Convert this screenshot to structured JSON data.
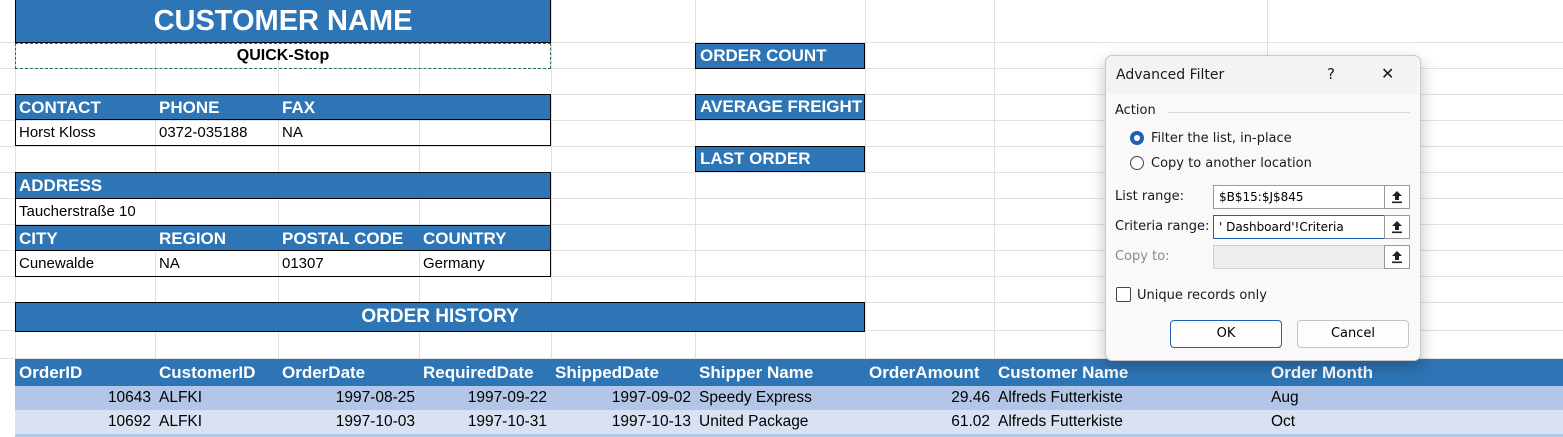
{
  "customer_card": {
    "title": "CUSTOMER NAME",
    "name": "QUICK-Stop",
    "contact_header": "CONTACT",
    "phone_header": "PHONE",
    "fax_header": "FAX",
    "contact": "Horst Kloss",
    "phone": "0372-035188",
    "fax": "NA",
    "address_header": "ADDRESS",
    "address": "Taucherstraße 10",
    "city_header": "CITY",
    "region_header": "REGION",
    "postal_header": "POSTAL CODE",
    "country_header": "COUNTRY",
    "city": "Cunewalde",
    "region": "NA",
    "postal": "01307",
    "country": "Germany"
  },
  "metrics": {
    "order_count": "ORDER COUNT",
    "average_freight": "AVERAGE FREIGHT",
    "last_order": "LAST ORDER"
  },
  "order_history": {
    "title": "ORDER HISTORY",
    "columns": [
      "OrderID",
      "CustomerID",
      "OrderDate",
      "RequiredDate",
      "ShippedDate",
      "Shipper Name",
      "OrderAmount",
      "Customer Name",
      "Order Month"
    ],
    "rows": [
      [
        "10643",
        "ALFKI",
        "1997-08-25",
        "1997-09-22",
        "1997-09-02",
        "Speedy Express",
        "29.46",
        "Alfreds Futterkiste",
        "Aug"
      ],
      [
        "10692",
        "ALFKI",
        "1997-10-03",
        "1997-10-31",
        "1997-10-13",
        "United Package",
        "61.02",
        "Alfreds Futterkiste",
        "Oct"
      ]
    ]
  },
  "dialog": {
    "title": "Advanced Filter",
    "help": "?",
    "close": "✕",
    "action_label": "Action",
    "option_inplace": "Filter the list, in-place",
    "option_copy": "Copy to another location",
    "list_range_label": "List range:",
    "list_range_value": "$B$15:$J$845",
    "criteria_range_label": "Criteria range:",
    "criteria_range_value": "' Dashboard'!Criteria",
    "copy_to_label": "Copy to:",
    "copy_to_value": "",
    "unique_label": "Unique records only",
    "ok": "OK",
    "cancel": "Cancel",
    "icon": "collapse-dialog-icon"
  },
  "colors": {
    "header_blue": "#2e75b6",
    "row_band": "#b4c6e7",
    "row_band_light": "#d9e1f2",
    "accent": "#1f5fb5"
  }
}
